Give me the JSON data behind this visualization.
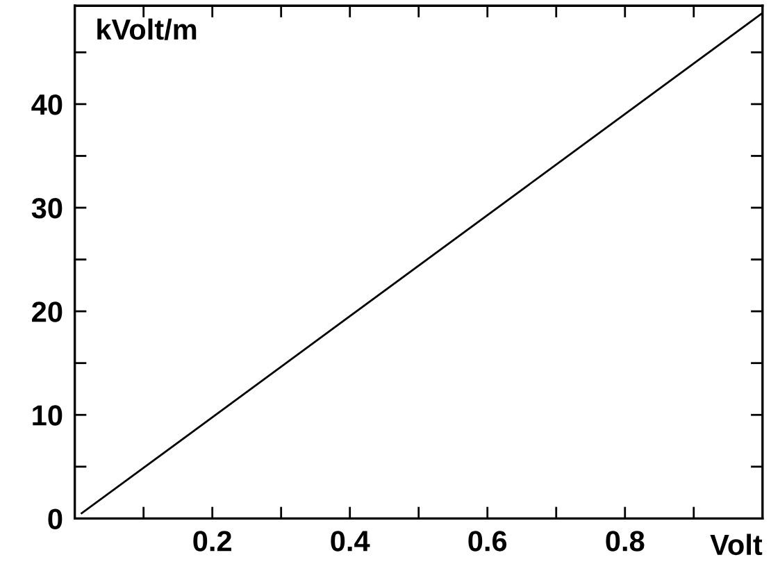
{
  "chart_data": {
    "type": "line",
    "xlabel": "Volt",
    "ylabel": "kVolt/m",
    "x": [
      0.01,
      1.0
    ],
    "series": [
      {
        "color": "#000000",
        "values": [
          0.5,
          48.8
        ]
      }
    ],
    "xlim": [
      0,
      1.0
    ],
    "ylim": [
      0,
      49.5
    ],
    "xticks": [
      {
        "value": 0.1,
        "label": null
      },
      0.2,
      {
        "value": 0.3,
        "label": null
      },
      0.4,
      {
        "value": 0.5,
        "label": null
      },
      0.6,
      {
        "value": 0.7,
        "label": null
      },
      0.8,
      {
        "value": 0.9,
        "label": null
      }
    ],
    "yticks": [
      0,
      {
        "value": 5,
        "label": null
      },
      10,
      {
        "value": 15,
        "label": null
      },
      20,
      {
        "value": 25,
        "label": null
      },
      30,
      {
        "value": 35,
        "label": null
      },
      40,
      {
        "value": 45,
        "label": null
      }
    ],
    "grid": false,
    "legend": false,
    "marker": "none",
    "line_style": "solid"
  }
}
